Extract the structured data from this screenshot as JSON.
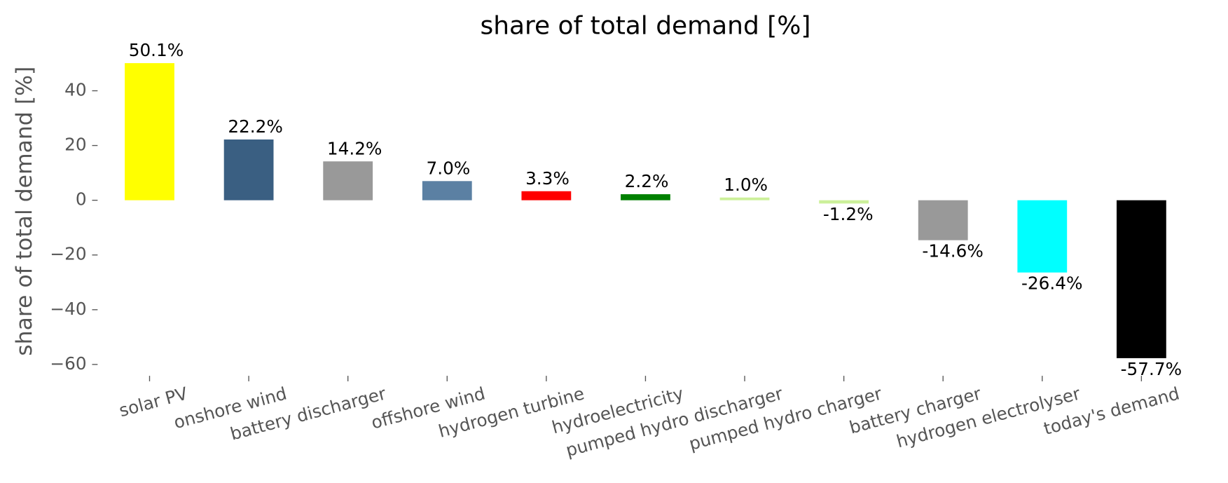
{
  "chart_data": {
    "type": "bar",
    "title": "share of total demand [%]",
    "y_label": "share of total demand [%]",
    "categories": [
      "solar PV",
      "onshore wind",
      "battery discharger",
      "offshore wind",
      "hydrogen turbine",
      "hydroelectricity",
      "pumped hydro discharger",
      "pumped hydro charger",
      "battery charger",
      "hydrogen electrolyser",
      "today's demand"
    ],
    "values": [
      50.1,
      22.2,
      14.2,
      7.0,
      3.3,
      2.2,
      1.0,
      -1.2,
      -14.6,
      -26.4,
      -57.7
    ],
    "value_labels": [
      "50.1%",
      "22.2%",
      "14.2%",
      "7.0%",
      "3.3%",
      "2.2%",
      "1.0%",
      "-1.2%",
      "-14.6%",
      "-26.4%",
      "-57.7%"
    ],
    "colors": [
      "#ffff00",
      "#3a5f82",
      "#999999",
      "#5b80a3",
      "#ff0000",
      "#008000",
      "#ccf09a",
      "#ccf09a",
      "#999999",
      "#00ffff",
      "#000000"
    ],
    "ylim": [
      -63,
      53
    ],
    "yticks": [
      {
        "value": -60,
        "label": "−60"
      },
      {
        "value": -40,
        "label": "−40"
      },
      {
        "value": -20,
        "label": "−20"
      },
      0,
      20,
      40
    ],
    "grid": false
  }
}
